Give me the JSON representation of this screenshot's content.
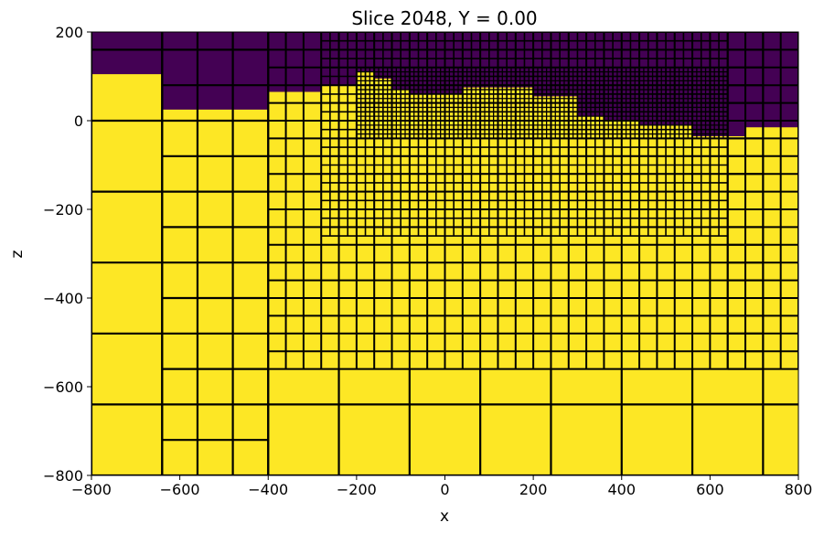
{
  "chart_data": {
    "type": "heatmap",
    "title": "Slice 2048, Y = 0.00",
    "xlabel": "x",
    "ylabel": "z",
    "xlim": [
      -800,
      800
    ],
    "ylim": [
      -800,
      200
    ],
    "x_ticks": [
      -800,
      -600,
      -400,
      -200,
      0,
      200,
      400,
      600,
      800
    ],
    "y_ticks": [
      -800,
      -600,
      -400,
      -200,
      0,
      200
    ],
    "x_tick_labels": [
      "−800",
      "−600",
      "−400",
      "−200",
      "0",
      "200",
      "400",
      "600",
      "800"
    ],
    "y_tick_labels": [
      "−800",
      "−600",
      "−400",
      "−200",
      "0",
      "200"
    ],
    "colors": {
      "air": "#440154",
      "ground": "#fde725",
      "cell_edge": "#000000"
    },
    "mesh": "octree",
    "surface_profile": {
      "x": [
        -800,
        -640,
        -640,
        -480,
        -480,
        -400,
        -400,
        -280,
        -280,
        -200,
        -200,
        -160,
        -160,
        -120,
        -120,
        -80,
        -80,
        40,
        40,
        200,
        200,
        300,
        300,
        360,
        360,
        440,
        440,
        560,
        560,
        680,
        680,
        800
      ],
      "z": [
        105,
        105,
        25,
        25,
        25,
        25,
        65,
        65,
        80,
        80,
        110,
        110,
        95,
        95,
        70,
        70,
        60,
        60,
        75,
        75,
        55,
        55,
        10,
        10,
        0,
        0,
        -10,
        -10,
        -35,
        -35,
        -15,
        -15
      ]
    },
    "grid_levels": [
      {
        "x_range": [
          -800,
          -640
        ],
        "z_range": [
          -800,
          200
        ],
        "cell_size": 160
      },
      {
        "x_range": [
          -640,
          -400
        ],
        "z_range": [
          -800,
          200
        ],
        "cell_size": 80
      },
      {
        "x_range": [
          -400,
          720
        ],
        "z_range": [
          -560,
          200
        ],
        "cell_size": 40
      },
      {
        "x_range": [
          -280,
          640
        ],
        "z_range": [
          -260,
          200
        ],
        "cell_size": 20
      },
      {
        "x_range": [
          -200,
          640
        ],
        "z_range": [
          -40,
          120
        ],
        "cell_size": 10
      },
      {
        "x_range": [
          640,
          800
        ],
        "z_range": [
          -560,
          200
        ],
        "cell_size": 40
      },
      {
        "x_range": [
          -400,
          800
        ],
        "z_range": [
          -800,
          -560
        ],
        "cell_size": 160
      }
    ]
  }
}
